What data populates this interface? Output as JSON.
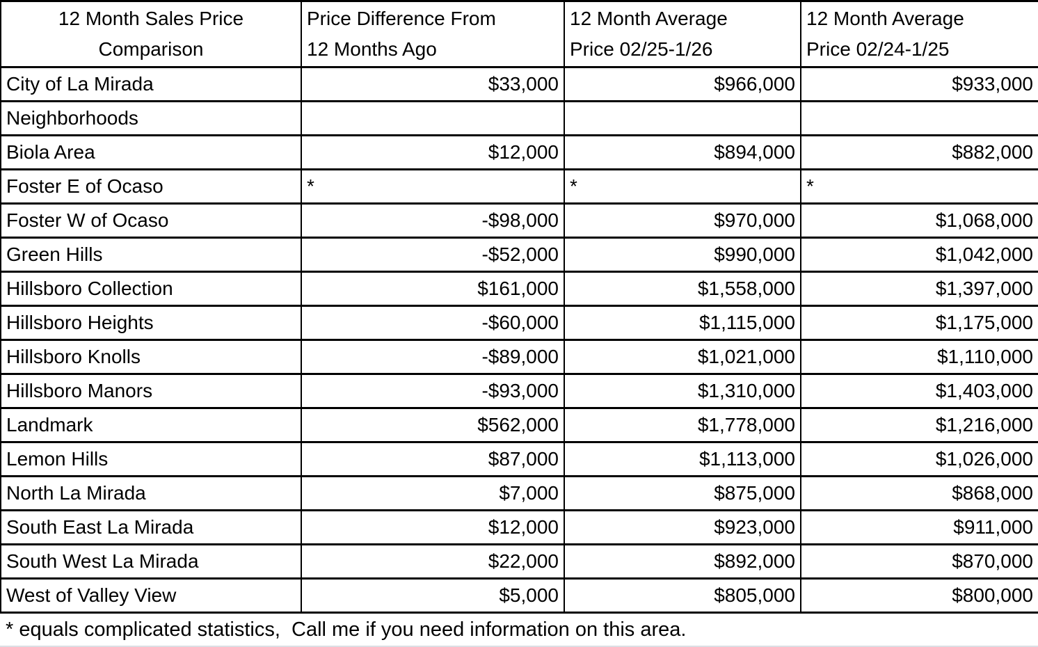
{
  "table": {
    "title_lines": [
      "12 Month Sales Price",
      "Comparison"
    ],
    "col_headers": [
      [
        "Price Difference From",
        "12 Months Ago"
      ],
      [
        "12 Month Average",
        "Price 02/25-1/26"
      ],
      [
        "12 Month Average",
        "Price 02/24-1/25"
      ]
    ],
    "rows": [
      {
        "label": "City of La Mirada",
        "bold": false,
        "values": [
          "$33,000",
          "$966,000",
          "$933,000"
        ]
      },
      {
        "label": "Neighborhoods",
        "bold": true,
        "values": [
          "",
          "",
          ""
        ]
      },
      {
        "label": "Biola Area",
        "bold": false,
        "values": [
          "$12,000",
          "$894,000",
          "$882,000"
        ]
      },
      {
        "label": "Foster E of Ocaso",
        "bold": false,
        "values": [
          "*",
          "*",
          "*"
        ]
      },
      {
        "label": "Foster W of Ocaso",
        "bold": false,
        "values": [
          "-$98,000",
          "$970,000",
          "$1,068,000"
        ]
      },
      {
        "label": "Green Hills",
        "bold": false,
        "values": [
          "-$52,000",
          "$990,000",
          "$1,042,000"
        ]
      },
      {
        "label": "Hillsboro Collection",
        "bold": false,
        "values": [
          "$161,000",
          "$1,558,000",
          "$1,397,000"
        ]
      },
      {
        "label": "Hillsboro Heights",
        "bold": false,
        "values": [
          "-$60,000",
          "$1,115,000",
          "$1,175,000"
        ]
      },
      {
        "label": "Hillsboro Knolls",
        "bold": false,
        "values": [
          "-$89,000",
          "$1,021,000",
          "$1,110,000"
        ]
      },
      {
        "label": "Hillsboro Manors",
        "bold": false,
        "values": [
          "-$93,000",
          "$1,310,000",
          "$1,403,000"
        ]
      },
      {
        "label": "Landmark",
        "bold": false,
        "values": [
          "$562,000",
          "$1,778,000",
          "$1,216,000"
        ]
      },
      {
        "label": "Lemon Hills",
        "bold": false,
        "values": [
          "$87,000",
          "$1,113,000",
          "$1,026,000"
        ]
      },
      {
        "label": "North La Mirada",
        "bold": false,
        "values": [
          "$7,000",
          "$875,000",
          "$868,000"
        ]
      },
      {
        "label": "South East La Mirada",
        "bold": false,
        "values": [
          "$12,000",
          "$923,000",
          "$911,000"
        ]
      },
      {
        "label": "South West La Mirada",
        "bold": false,
        "values": [
          "$22,000",
          "$892,000",
          "$870,000"
        ]
      },
      {
        "label": "West of Valley View",
        "bold": false,
        "values": [
          "$5,000",
          "$805,000",
          "$800,000"
        ]
      }
    ],
    "footnote": "* equals complicated statistics,  Call me if you need information on this area.",
    "colors": {
      "border": "#000000",
      "text": "#000000",
      "background": "#ffffff"
    }
  }
}
